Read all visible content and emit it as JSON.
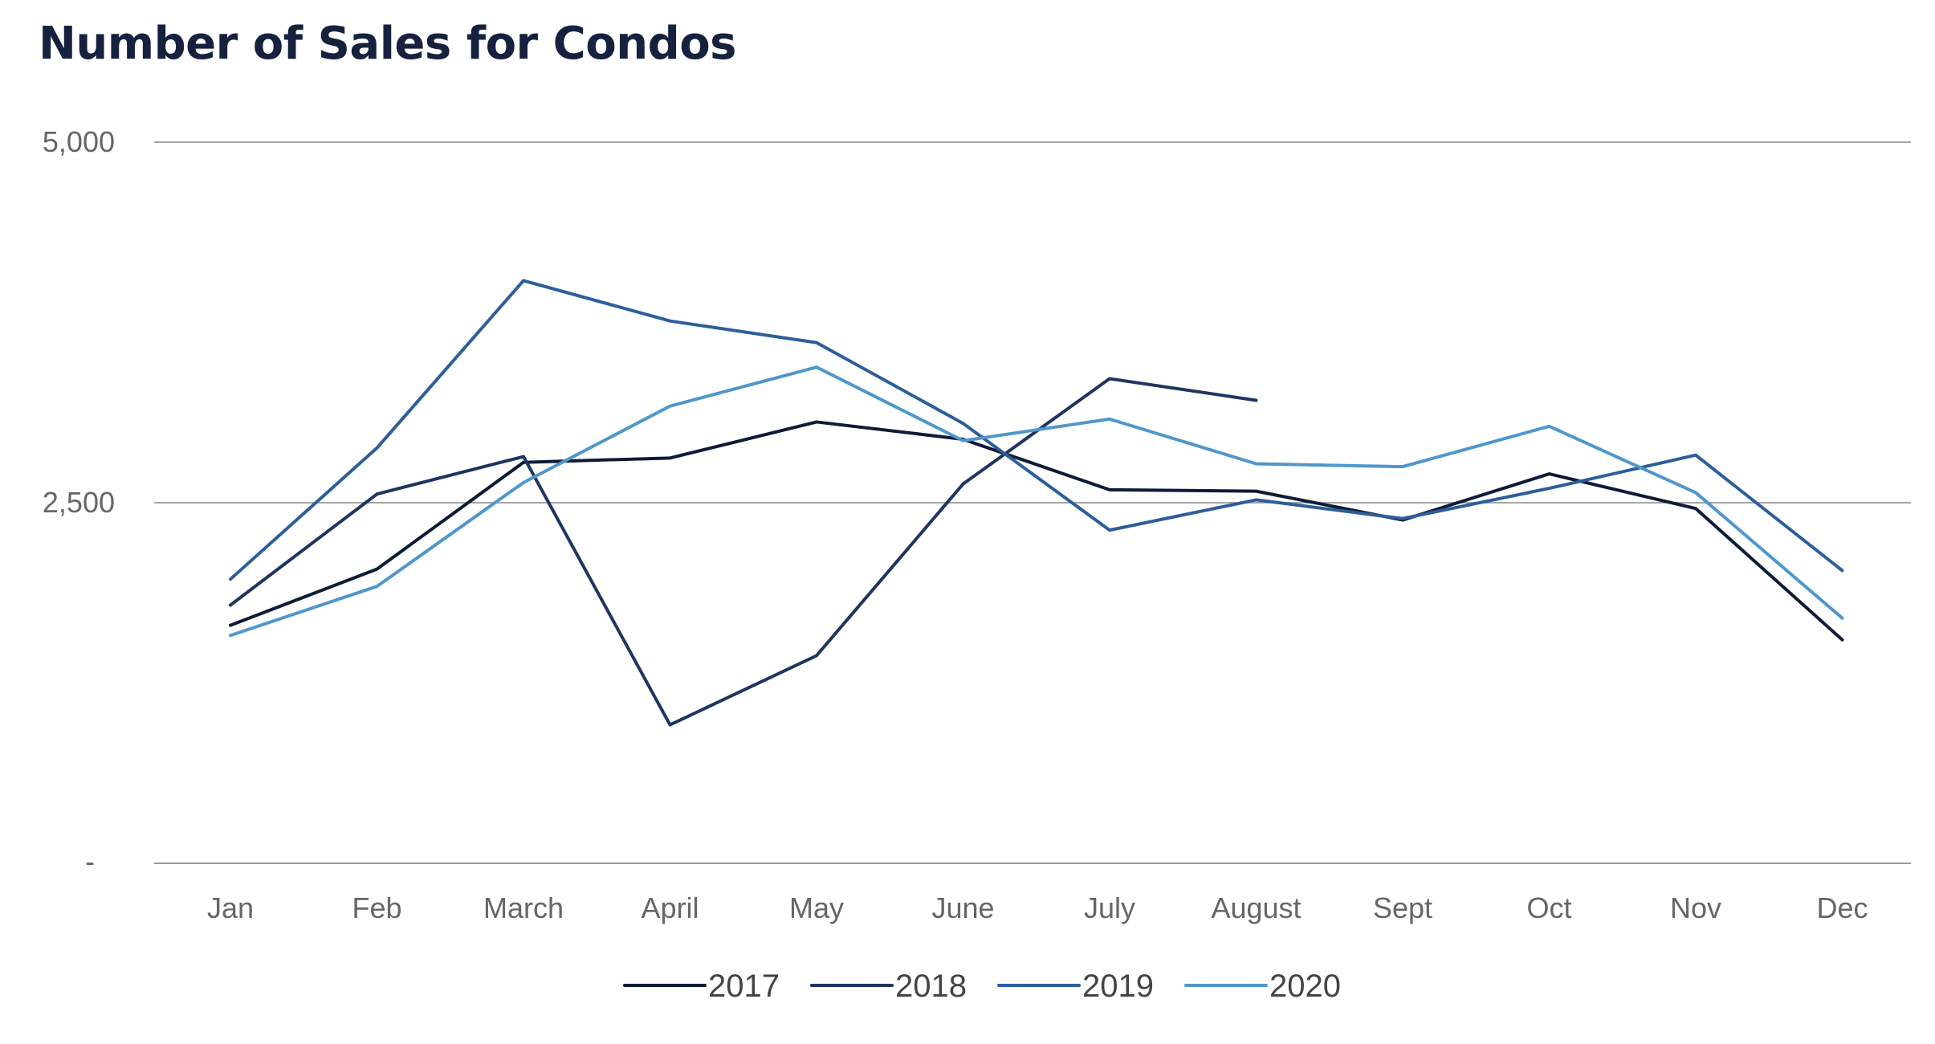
{
  "chart_data": {
    "type": "line",
    "title": "Number of Sales for Condos",
    "xlabel": "",
    "ylabel": "",
    "ylim": [
      0,
      5000
    ],
    "y_ticks": [
      {
        "value": 0,
        "label": "-"
      },
      {
        "value": 2500,
        "label": "2,500"
      },
      {
        "value": 5000,
        "label": "5,000"
      }
    ],
    "grid": true,
    "legend_position": "bottom-center",
    "categories": [
      "Jan",
      "Feb",
      "March",
      "April",
      "May",
      "June",
      "July",
      "August",
      "Sept",
      "Oct",
      "Nov",
      "Dec"
    ],
    "series": [
      {
        "name": "2017",
        "color": "#0d1b36",
        "values": [
          1650,
          2040,
          2780,
          2810,
          3060,
          2940,
          2590,
          2580,
          2380,
          2700,
          2460,
          1550
        ]
      },
      {
        "name": "2018",
        "color": "#1e3560",
        "values": [
          1790,
          2560,
          2820,
          960,
          1440,
          2630,
          3360,
          3210,
          null,
          null,
          null,
          null
        ]
      },
      {
        "name": "2019",
        "color": "#2c5e9a",
        "values": [
          1970,
          2880,
          4040,
          3760,
          3610,
          3050,
          2310,
          2520,
          2390,
          2600,
          2830,
          2030
        ]
      },
      {
        "name": "2020",
        "color": "#4f97cb",
        "values": [
          1580,
          1920,
          2640,
          3170,
          3440,
          2930,
          3080,
          2770,
          2750,
          3030,
          2570,
          1700
        ]
      }
    ]
  }
}
